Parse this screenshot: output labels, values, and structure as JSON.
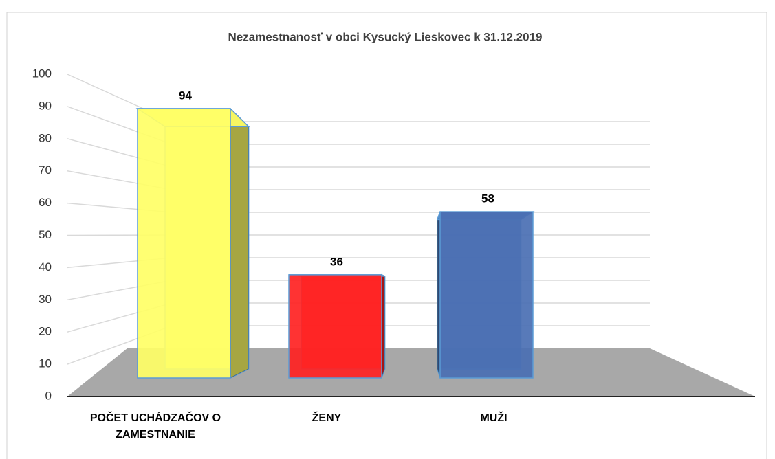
{
  "chart_data": {
    "type": "bar3d",
    "title": "Nezamestnanosť v obci Kysucký Lieskovec k 31.12.2019",
    "categories": [
      "POČET UCHÁDZAČOV O ZAMESTNANIE",
      "ŽENY",
      "MUŽI"
    ],
    "series": [
      {
        "name": null,
        "values": [
          94,
          36,
          58
        ],
        "colors": [
          "#ffff66",
          "#ff2222",
          "#4a6fb3"
        ]
      }
    ],
    "ylim": [
      0,
      100
    ],
    "yticks": [
      0,
      10,
      20,
      30,
      40,
      50,
      60,
      70,
      80,
      90,
      100
    ],
    "grid": true
  }
}
